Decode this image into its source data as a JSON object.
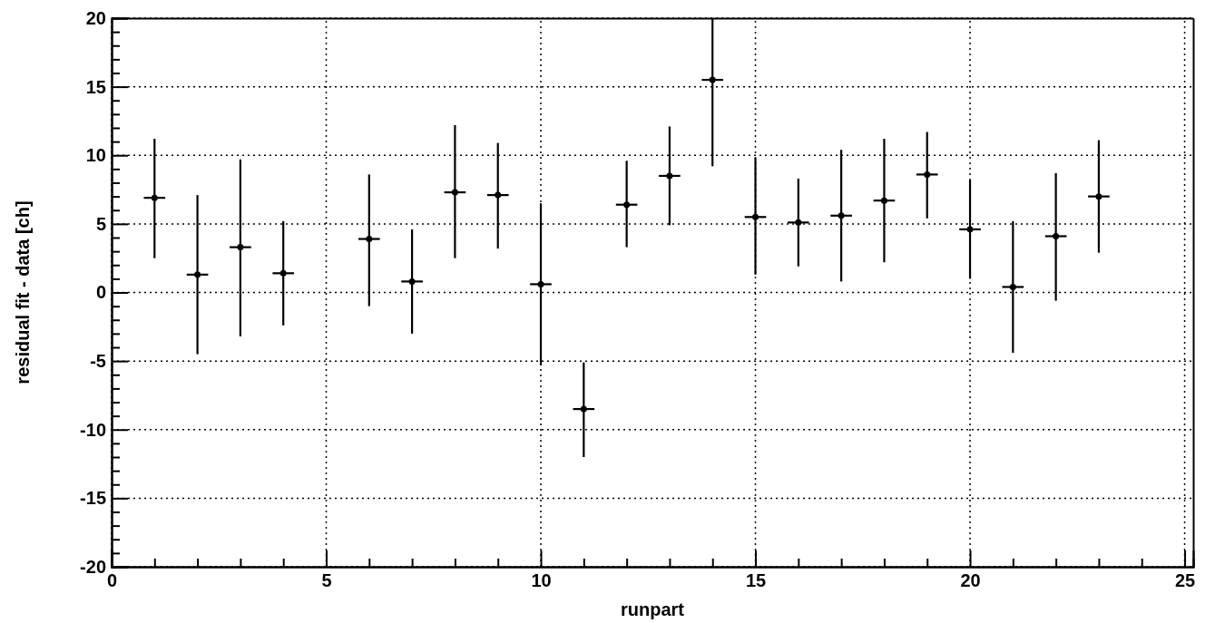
{
  "chart_data": {
    "type": "scatter",
    "xlabel": "runpart",
    "ylabel": "residual fit - data [ch]",
    "x": [
      1,
      2,
      3,
      4,
      6,
      7,
      8,
      9,
      10,
      11,
      12,
      13,
      14,
      15,
      16,
      17,
      18,
      19,
      20,
      21,
      22,
      23
    ],
    "values": [
      6.9,
      1.3,
      3.3,
      1.4,
      3.9,
      0.8,
      7.3,
      7.1,
      0.6,
      -8.5,
      6.4,
      8.5,
      15.5,
      5.5,
      5.1,
      5.6,
      6.7,
      8.6,
      4.6,
      0.4,
      4.1,
      7.0
    ],
    "errors": [
      [
        2.5,
        11.2
      ],
      [
        -4.5,
        7.1
      ],
      [
        -3.2,
        9.7
      ],
      [
        -2.4,
        5.2
      ],
      [
        -1.0,
        8.6
      ],
      [
        -3.0,
        4.6
      ],
      [
        2.5,
        12.2
      ],
      [
        3.2,
        10.9
      ],
      [
        -5.3,
        6.5
      ],
      [
        -12.0,
        -5.1
      ],
      [
        3.3,
        9.6
      ],
      [
        4.9,
        12.1
      ],
      [
        9.2,
        20
      ],
      [
        1.3,
        9.8
      ],
      [
        1.9,
        8.3
      ],
      [
        0.8,
        10.4
      ],
      [
        2.2,
        11.2
      ],
      [
        5.4,
        11.7
      ],
      [
        1.0,
        8.2
      ],
      [
        -4.4,
        5.2
      ],
      [
        -0.6,
        8.7
      ],
      [
        2.9,
        11.1
      ]
    ],
    "xerrors": [
      0.25,
      0.25,
      0.25,
      0.25,
      0.25,
      0.25,
      0.25,
      0.25,
      0.25,
      0.25,
      0.25,
      0.25,
      0.25,
      0.25,
      0.25,
      0.25,
      0.25,
      0.25,
      0.25,
      0.25,
      0.25,
      0.25
    ],
    "color": "#000000",
    "marker": "circle",
    "grid": true,
    "xlim": [
      0,
      25.2
    ],
    "xticks": [
      0,
      {
        "value": 1,
        "label": null
      },
      {
        "value": 2,
        "label": null
      },
      {
        "value": 3,
        "label": null
      },
      {
        "value": 4,
        "label": null
      },
      5,
      {
        "value": 6,
        "label": null
      },
      {
        "value": 7,
        "label": null
      },
      {
        "value": 8,
        "label": null
      },
      {
        "value": 9,
        "label": null
      },
      10,
      {
        "value": 11,
        "label": null
      },
      {
        "value": 12,
        "label": null
      },
      {
        "value": 13,
        "label": null
      },
      {
        "value": 14,
        "label": null
      },
      15,
      {
        "value": 16,
        "label": null
      },
      {
        "value": 17,
        "label": null
      },
      {
        "value": 18,
        "label": null
      },
      {
        "value": 19,
        "label": null
      },
      20,
      {
        "value": 21,
        "label": null
      },
      {
        "value": 22,
        "label": null
      },
      {
        "value": 23,
        "label": null
      },
      {
        "value": 24,
        "label": null
      },
      25
    ],
    "ylim": [
      -20,
      20
    ],
    "yticks": [
      -20,
      {
        "value": -19,
        "label": null
      },
      {
        "value": -18,
        "label": null
      },
      {
        "value": -17,
        "label": null
      },
      {
        "value": -16,
        "label": null
      },
      -15,
      {
        "value": -14,
        "label": null
      },
      {
        "value": -13,
        "label": null
      },
      {
        "value": -12,
        "label": null
      },
      {
        "value": -11,
        "label": null
      },
      -10,
      {
        "value": -9,
        "label": null
      },
      {
        "value": -8,
        "label": null
      },
      {
        "value": -7,
        "label": null
      },
      {
        "value": -6,
        "label": null
      },
      -5,
      {
        "value": -4,
        "label": null
      },
      {
        "value": -3,
        "label": null
      },
      {
        "value": -2,
        "label": null
      },
      {
        "value": -1,
        "label": null
      },
      0,
      {
        "value": 1,
        "label": null
      },
      {
        "value": 2,
        "label": null
      },
      {
        "value": 3,
        "label": null
      },
      {
        "value": 4,
        "label": null
      },
      5,
      {
        "value": 6,
        "label": null
      },
      {
        "value": 7,
        "label": null
      },
      {
        "value": 8,
        "label": null
      },
      {
        "value": 9,
        "label": null
      },
      10,
      {
        "value": 11,
        "label": null
      },
      {
        "value": 12,
        "label": null
      },
      {
        "value": 13,
        "label": null
      },
      {
        "value": 14,
        "label": null
      },
      15,
      {
        "value": 16,
        "label": null
      },
      {
        "value": 17,
        "label": null
      },
      {
        "value": 18,
        "label": null
      },
      {
        "value": 19,
        "label": null
      },
      20
    ]
  }
}
